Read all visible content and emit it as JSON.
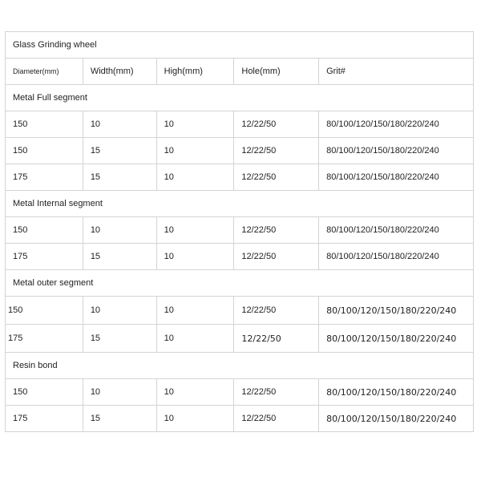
{
  "table": {
    "title": "Glass Grinding wheel",
    "header": [
      "Diameter(mm)",
      "Width(mm)",
      "High(mm)",
      "Hole(mm)",
      "Grit#"
    ],
    "sections": [
      {
        "name": "Metal Full segment",
        "rows": [
          [
            "150",
            "10",
            "10",
            "12/22/50",
            "80/100/120/150/180/220/240"
          ],
          [
            "150",
            "15",
            "10",
            "12/22/50",
            "80/100/120/150/180/220/240"
          ],
          [
            "175",
            "15",
            "10",
            "12/22/50",
            "80/100/120/150/180/220/240"
          ]
        ]
      },
      {
        "name": "Metal Internal segment",
        "rows": [
          [
            "150",
            "10",
            "10",
            "12/22/50",
            "80/100/120/150/180/220/240"
          ],
          [
            "175",
            "15",
            "10",
            "12/22/50",
            "80/100/120/150/180/220/240"
          ]
        ]
      },
      {
        "name": "Metal outer segment",
        "rows": [
          [
            "150",
            "10",
            "10",
            "12/22/50",
            "80/100/120/150/180/220/240"
          ],
          [
            "175",
            "15",
            "10",
            "12/22/50",
            "80/100/120/150/180/220/240"
          ]
        ]
      },
      {
        "name": "Resin bond",
        "rows": [
          [
            "150",
            "10",
            "10",
            "12/22/50",
            "80/100/120/150/180/220/240"
          ],
          [
            "175",
            "15",
            "10",
            "12/22/50",
            "80/100/120/150/180/220/240"
          ]
        ]
      }
    ]
  }
}
